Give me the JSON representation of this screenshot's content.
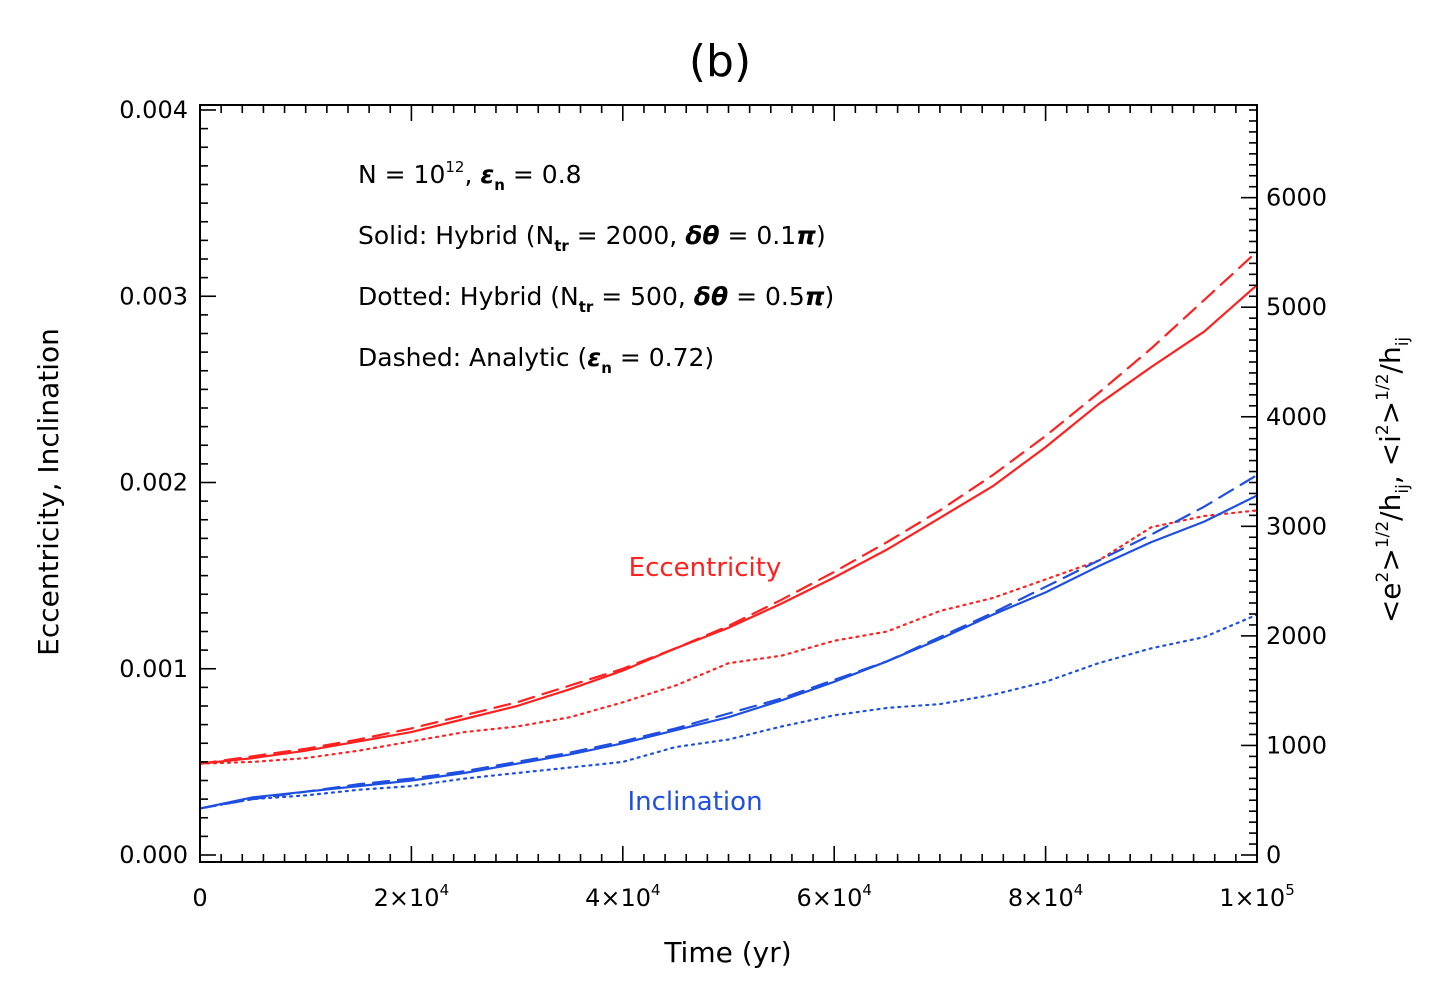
{
  "chart_data": {
    "type": "line",
    "title": "(b)",
    "xlabel": "Time (yr)",
    "ylabel": "Eccentricity, Inclination",
    "ylabel_right": "<e²>^1/2/h_ij, <i²>^1/2/h_ij",
    "xlim": [
      0,
      100000
    ],
    "ylim": [
      0,
      0.004
    ],
    "ylim_right": [
      0,
      6800
    ],
    "x_ticks": [
      {
        "value": 0,
        "mantissa": "0",
        "exp": ""
      },
      {
        "value": 20000,
        "mantissa": "2×10",
        "exp": "4"
      },
      {
        "value": 40000,
        "mantissa": "4×10",
        "exp": "4"
      },
      {
        "value": 60000,
        "mantissa": "6×10",
        "exp": "4"
      },
      {
        "value": 80000,
        "mantissa": "8×10",
        "exp": "4"
      },
      {
        "value": 100000,
        "mantissa": "1×10",
        "exp": "5"
      }
    ],
    "y_ticks": [
      {
        "value": 0,
        "label": "0.000"
      },
      {
        "value": 0.001,
        "label": "0.001"
      },
      {
        "value": 0.002,
        "label": "0.002"
      },
      {
        "value": 0.003,
        "label": "0.003"
      },
      {
        "value": 0.004,
        "label": "0.004"
      }
    ],
    "y_ticks_right": [
      {
        "value": 0,
        "label": "0"
      },
      {
        "value": 1000,
        "label": "1000"
      },
      {
        "value": 2000,
        "label": "2000"
      },
      {
        "value": 3000,
        "label": "3000"
      },
      {
        "value": 4000,
        "label": "4000"
      },
      {
        "value": 5000,
        "label": "5000"
      },
      {
        "value": 6000,
        "label": "6000"
      }
    ],
    "annotations": {
      "line1": {
        "a": "N = 10",
        "b": "12",
        "c": ", ",
        "d": "ε",
        "e": "n",
        "f": " = 0.8"
      },
      "line2": {
        "a": "Solid: Hybrid (N",
        "b": "tr",
        "c": " = 2000, ",
        "d": "δθ",
        "e": " = 0.1",
        "f": "π",
        "g": ")"
      },
      "line3": {
        "a": "Dotted: Hybrid (N",
        "b": "tr",
        "c": " = 500, ",
        "d": "δθ",
        "e": " = 0.5",
        "f": "π",
        "g": ")"
      },
      "line4": {
        "a": "Dashed: Analytic (",
        "b": "ε",
        "c": "n",
        "d": " = 0.72)"
      },
      "eccentricity_label": "Eccentricity",
      "inclination_label": "Inclination"
    },
    "colors": {
      "eccentricity": "#ff2020",
      "inclination": "#1f4fe0",
      "axis": "#000000"
    },
    "x": [
      0,
      5000,
      10000,
      15000,
      20000,
      25000,
      30000,
      35000,
      40000,
      45000,
      50000,
      55000,
      60000,
      65000,
      70000,
      75000,
      80000,
      85000,
      90000,
      95000,
      100000
    ],
    "series": [
      {
        "group": "eccentricity",
        "style": "solid",
        "values": [
          0.00049,
          0.00052,
          0.00056,
          0.00061,
          0.00066,
          0.00073,
          0.0008,
          0.00089,
          0.00099,
          0.00111,
          0.00122,
          0.00135,
          0.00149,
          0.00164,
          0.00181,
          0.00198,
          0.00219,
          0.00242,
          0.00262,
          0.00281,
          0.00306
        ]
      },
      {
        "group": "eccentricity",
        "style": "dotted",
        "values": [
          0.00049,
          0.0005,
          0.00052,
          0.00056,
          0.00061,
          0.00066,
          0.00069,
          0.00074,
          0.00082,
          0.00091,
          0.00103,
          0.00107,
          0.00115,
          0.0012,
          0.00131,
          0.00138,
          0.00148,
          0.00158,
          0.00176,
          0.00182,
          0.00185
        ]
      },
      {
        "group": "eccentricity",
        "style": "dashed",
        "values": [
          0.00049,
          0.00053,
          0.00057,
          0.00062,
          0.00068,
          0.00075,
          0.00082,
          0.00091,
          0.001,
          0.00111,
          0.00123,
          0.00137,
          0.00152,
          0.00168,
          0.00185,
          0.00204,
          0.00225,
          0.00248,
          0.00272,
          0.00298,
          0.00324
        ]
      },
      {
        "group": "inclination",
        "style": "solid",
        "values": [
          0.00025,
          0.00031,
          0.00034,
          0.00037,
          0.0004,
          0.00044,
          0.00049,
          0.00054,
          0.0006,
          0.00067,
          0.00074,
          0.00083,
          0.00093,
          0.00104,
          0.00116,
          0.00129,
          0.00141,
          0.00155,
          0.00168,
          0.00179,
          0.00193
        ]
      },
      {
        "group": "inclination",
        "style": "dotted",
        "values": [
          0.00025,
          0.0003,
          0.00032,
          0.00035,
          0.00037,
          0.00041,
          0.00044,
          0.00047,
          0.0005,
          0.00058,
          0.00062,
          0.00069,
          0.00075,
          0.00079,
          0.00081,
          0.00086,
          0.00093,
          0.00103,
          0.00111,
          0.00117,
          0.00129
        ]
      },
      {
        "group": "inclination",
        "style": "dashed",
        "values": [
          0.00025,
          0.0003,
          0.00034,
          0.00038,
          0.00041,
          0.00045,
          0.0005,
          0.00055,
          0.00061,
          0.00068,
          0.00076,
          0.00084,
          0.00094,
          0.00104,
          0.00117,
          0.0013,
          0.00144,
          0.00158,
          0.00172,
          0.00187,
          0.00204
        ]
      }
    ]
  }
}
